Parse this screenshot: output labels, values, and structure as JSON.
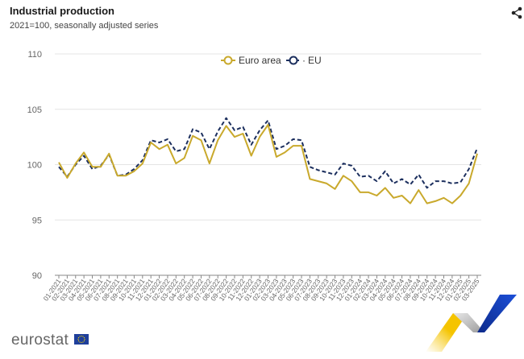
{
  "header": {
    "title": "Industrial production",
    "subtitle": "2021=100, seasonally adjusted series",
    "share_icon": "share-icon"
  },
  "footer": {
    "logo_text": "eurostat",
    "flag_icon": "eu-flag-icon"
  },
  "colors": {
    "euro_area": "#c9a92c",
    "eu": "#1c2f5e",
    "grid": "#e4e4e4",
    "axis": "#888888"
  },
  "chart_data": {
    "type": "line",
    "title": "Industrial production",
    "subtitle": "2021=100, seasonally adjusted series",
    "xlabel": "",
    "ylabel": "",
    "ylim": [
      90,
      110
    ],
    "yticks": [
      90,
      95,
      100,
      105,
      110
    ],
    "grid": true,
    "legend_position": "top-center",
    "x": [
      "01-2021",
      "02-2021",
      "03-2021",
      "04-2021",
      "05-2021",
      "06-2021",
      "07-2021",
      "08-2021",
      "09-2021",
      "10-2021",
      "11-2021",
      "12-2021",
      "01-2022",
      "02-2022",
      "03-2022",
      "04-2022",
      "05-2022",
      "06-2022",
      "07-2022",
      "08-2022",
      "09-2022",
      "10-2022",
      "11-2022",
      "12-2022",
      "01-2023",
      "02-2023",
      "03-2023",
      "04-2023",
      "05-2023",
      "06-2023",
      "07-2023",
      "08-2023",
      "09-2023",
      "10-2023",
      "11-2023",
      "12-2023",
      "01-2024",
      "02-2024",
      "03-2024",
      "04-2024",
      "05-2024",
      "06-2024",
      "07-2024",
      "08-2024",
      "09-2024",
      "10-2024",
      "11-2024",
      "12-2024",
      "01-2025",
      "02-2025",
      "03-2025"
    ],
    "series": [
      {
        "name": "Euro area",
        "style": "solid",
        "color": "#c9a92c",
        "values": [
          100.2,
          98.8,
          100.1,
          101.1,
          99.8,
          99.8,
          101.0,
          99.0,
          99.0,
          99.4,
          100.1,
          102.0,
          101.4,
          101.8,
          100.1,
          100.6,
          102.6,
          102.2,
          100.1,
          102.2,
          103.5,
          102.5,
          102.8,
          100.8,
          102.5,
          103.6,
          100.7,
          101.1,
          101.7,
          101.7,
          98.7,
          98.5,
          98.3,
          97.8,
          99.0,
          98.5,
          97.5,
          97.5,
          97.2,
          97.9,
          97.0,
          97.2,
          96.5,
          97.7,
          96.5,
          96.7,
          97.0,
          96.5,
          97.2,
          98.3,
          101.0
        ]
      },
      {
        "name": "EU",
        "style": "dashed",
        "color": "#1c2f5e",
        "values": [
          99.8,
          98.9,
          100.0,
          100.8,
          99.6,
          99.9,
          100.9,
          99.0,
          99.1,
          99.6,
          100.4,
          102.2,
          102.0,
          102.3,
          101.2,
          101.4,
          103.2,
          102.9,
          101.4,
          103.0,
          104.2,
          103.1,
          103.4,
          101.8,
          103.1,
          104.0,
          101.4,
          101.7,
          102.3,
          102.2,
          99.8,
          99.5,
          99.3,
          99.1,
          100.1,
          99.9,
          98.9,
          99.0,
          98.5,
          99.4,
          98.3,
          98.7,
          98.2,
          99.1,
          97.9,
          98.5,
          98.5,
          98.3,
          98.4,
          99.6,
          101.5
        ]
      }
    ]
  }
}
